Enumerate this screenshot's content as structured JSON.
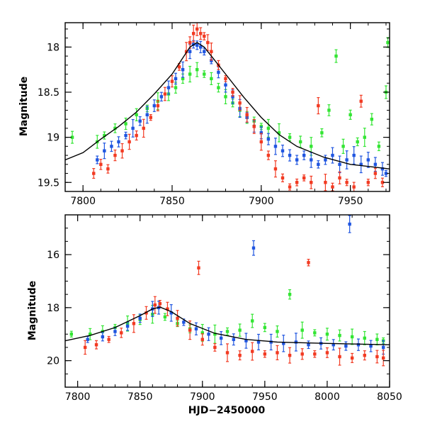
{
  "chart_data": [
    {
      "type": "scatter",
      "panel": "top",
      "xlabel": "",
      "ylabel": "Magnitude",
      "xlim": [
        7790,
        7972
      ],
      "ylim": [
        19.6,
        17.73
      ],
      "y_inverted": true,
      "xticks": [
        7800,
        7850,
        7900,
        7950
      ],
      "yticks": [
        18,
        18.5,
        19,
        19.5
      ],
      "ytick_labels": [
        "18",
        "18.5",
        "19",
        "19.5"
      ],
      "grid": false,
      "colors": {
        "green": "#33e533",
        "blue": "#1f55e0",
        "red": "#f23a22",
        "model": "#000000"
      },
      "series": [
        {
          "color": "green",
          "points": [
            [
              7794,
              19.0
            ],
            [
              7808,
              19.05
            ],
            [
              7812,
              18.98
            ],
            [
              7818,
              18.9
            ],
            [
              7824,
              18.85
            ],
            [
              7830,
              18.75
            ],
            [
              7836,
              18.68
            ],
            [
              7842,
              18.6
            ],
            [
              7848,
              18.52
            ],
            [
              7852,
              18.45
            ],
            [
              7856,
              18.35
            ],
            [
              7860,
              18.3
            ],
            [
              7864,
              18.25
            ],
            [
              7868,
              18.3
            ],
            [
              7872,
              18.35
            ],
            [
              7876,
              18.45
            ],
            [
              7880,
              18.55
            ],
            [
              7884,
              18.62
            ],
            [
              7888,
              18.7
            ],
            [
              7892,
              18.78
            ],
            [
              7896,
              18.82
            ],
            [
              7900,
              18.88
            ],
            [
              7904,
              18.9
            ],
            [
              7910,
              18.95
            ],
            [
              7916,
              19.0
            ],
            [
              7922,
              19.05
            ],
            [
              7928,
              19.1
            ],
            [
              7934,
              18.95
            ],
            [
              7938,
              18.7
            ],
            [
              7942,
              18.1
            ],
            [
              7946,
              19.1
            ],
            [
              7950,
              18.75
            ],
            [
              7954,
              19.05
            ],
            [
              7958,
              19.0
            ],
            [
              7962,
              18.8
            ],
            [
              7966,
              19.1
            ],
            [
              7970,
              18.5
            ],
            [
              7971,
              17.95
            ]
          ]
        },
        {
          "color": "blue",
          "points": [
            [
              7808,
              19.25
            ],
            [
              7812,
              19.15
            ],
            [
              7816,
              19.1
            ],
            [
              7820,
              19.05
            ],
            [
              7824,
              18.98
            ],
            [
              7828,
              18.9
            ],
            [
              7832,
              18.82
            ],
            [
              7836,
              18.75
            ],
            [
              7840,
              18.65
            ],
            [
              7844,
              18.55
            ],
            [
              7848,
              18.45
            ],
            [
              7852,
              18.35
            ],
            [
              7856,
              18.25
            ],
            [
              7860,
              18.05
            ],
            [
              7862,
              17.97
            ],
            [
              7864,
              17.98
            ],
            [
              7866,
              18.0
            ],
            [
              7868,
              18.05
            ],
            [
              7872,
              18.15
            ],
            [
              7876,
              18.28
            ],
            [
              7880,
              18.42
            ],
            [
              7884,
              18.55
            ],
            [
              7888,
              18.68
            ],
            [
              7892,
              18.78
            ],
            [
              7896,
              18.88
            ],
            [
              7900,
              18.95
            ],
            [
              7904,
              19.02
            ],
            [
              7908,
              19.1
            ],
            [
              7912,
              19.15
            ],
            [
              7916,
              19.2
            ],
            [
              7920,
              19.25
            ],
            [
              7924,
              19.2
            ],
            [
              7928,
              19.25
            ],
            [
              7932,
              19.3
            ],
            [
              7936,
              19.25
            ],
            [
              7940,
              19.2
            ],
            [
              7944,
              19.3
            ],
            [
              7948,
              19.25
            ],
            [
              7952,
              19.2
            ],
            [
              7956,
              19.3
            ],
            [
              7960,
              19.25
            ],
            [
              7964,
              19.3
            ],
            [
              7968,
              19.35
            ],
            [
              7970,
              19.4
            ]
          ]
        },
        {
          "color": "red",
          "points": [
            [
              7806,
              19.4
            ],
            [
              7810,
              19.3
            ],
            [
              7814,
              19.35
            ],
            [
              7818,
              19.2
            ],
            [
              7822,
              19.15
            ],
            [
              7826,
              19.05
            ],
            [
              7830,
              18.98
            ],
            [
              7834,
              18.9
            ],
            [
              7838,
              18.78
            ],
            [
              7842,
              18.65
            ],
            [
              7846,
              18.52
            ],
            [
              7850,
              18.38
            ],
            [
              7854,
              18.22
            ],
            [
              7858,
              18.05
            ],
            [
              7860,
              17.95
            ],
            [
              7862,
              17.85
            ],
            [
              7864,
              17.8
            ],
            [
              7866,
              17.85
            ],
            [
              7868,
              17.88
            ],
            [
              7870,
              17.95
            ],
            [
              7872,
              18.05
            ],
            [
              7876,
              18.2
            ],
            [
              7880,
              18.35
            ],
            [
              7884,
              18.5
            ],
            [
              7888,
              18.62
            ],
            [
              7892,
              18.75
            ],
            [
              7896,
              18.88
            ],
            [
              7900,
              19.05
            ],
            [
              7904,
              19.2
            ],
            [
              7908,
              19.35
            ],
            [
              7912,
              19.45
            ],
            [
              7916,
              19.55
            ],
            [
              7920,
              19.5
            ],
            [
              7924,
              19.45
            ],
            [
              7928,
              19.5
            ],
            [
              7932,
              18.65
            ],
            [
              7936,
              19.5
            ],
            [
              7940,
              19.55
            ],
            [
              7944,
              19.45
            ],
            [
              7948,
              19.5
            ],
            [
              7952,
              19.55
            ],
            [
              7956,
              18.6
            ],
            [
              7960,
              19.5
            ],
            [
              7964,
              19.4
            ],
            [
              7968,
              19.5
            ]
          ]
        },
        {
          "color": "model",
          "line": true,
          "points": [
            [
              7790,
              19.25
            ],
            [
              7800,
              19.17
            ],
            [
              7810,
              19.02
            ],
            [
              7820,
              18.88
            ],
            [
              7830,
              18.72
            ],
            [
              7840,
              18.52
            ],
            [
              7850,
              18.3
            ],
            [
              7856,
              18.12
            ],
            [
              7860,
              18.0
            ],
            [
              7864,
              17.95
            ],
            [
              7868,
              18.0
            ],
            [
              7872,
              18.1
            ],
            [
              7880,
              18.3
            ],
            [
              7890,
              18.55
            ],
            [
              7900,
              18.78
            ],
            [
              7910,
              18.97
            ],
            [
              7920,
              19.1
            ],
            [
              7935,
              19.22
            ],
            [
              7950,
              19.3
            ],
            [
              7972,
              19.35
            ]
          ]
        }
      ]
    },
    {
      "type": "scatter",
      "panel": "bottom",
      "xlabel": "HJD−2450000",
      "ylabel": "Magnitude",
      "xlim": [
        7790,
        8050
      ],
      "ylim": [
        21.0,
        14.5
      ],
      "y_inverted": true,
      "xticks": [
        7800,
        7850,
        7900,
        7950,
        8000,
        8050
      ],
      "yticks": [
        16,
        18,
        20
      ],
      "ytick_labels": [
        "16",
        "18",
        "20"
      ],
      "grid": false,
      "colors": {
        "green": "#33e533",
        "blue": "#1f55e0",
        "red": "#f23a22",
        "model": "#000000"
      },
      "series": [
        {
          "color": "green",
          "points": [
            [
              7795,
              19.0
            ],
            [
              7810,
              19.0
            ],
            [
              7820,
              18.9
            ],
            [
              7830,
              18.75
            ],
            [
              7840,
              18.6
            ],
            [
              7850,
              18.45
            ],
            [
              7860,
              18.25
            ],
            [
              7870,
              18.35
            ],
            [
              7880,
              18.6
            ],
            [
              7890,
              18.8
            ],
            [
              7900,
              18.95
            ],
            [
              7910,
              19.0
            ],
            [
              7920,
              18.9
            ],
            [
              7930,
              18.85
            ],
            [
              7940,
              18.5
            ],
            [
              7950,
              18.75
            ],
            [
              7960,
              18.9
            ],
            [
              7970,
              17.5
            ],
            [
              7980,
              18.85
            ],
            [
              7990,
              18.95
            ],
            [
              8000,
              19.0
            ],
            [
              8010,
              19.05
            ],
            [
              8020,
              19.1
            ],
            [
              8030,
              19.15
            ],
            [
              8040,
              19.2
            ],
            [
              8045,
              19.25
            ]
          ]
        },
        {
          "color": "blue",
          "points": [
            [
              7808,
              19.2
            ],
            [
              7820,
              19.1
            ],
            [
              7830,
              18.9
            ],
            [
              7840,
              18.7
            ],
            [
              7850,
              18.4
            ],
            [
              7860,
              18.05
            ],
            [
              7865,
              18.0
            ],
            [
              7875,
              18.2
            ],
            [
              7885,
              18.55
            ],
            [
              7895,
              18.8
            ],
            [
              7905,
              19.0
            ],
            [
              7915,
              19.15
            ],
            [
              7925,
              19.2
            ],
            [
              7935,
              19.25
            ],
            [
              7941,
              15.75
            ],
            [
              7945,
              19.3
            ],
            [
              7955,
              19.3
            ],
            [
              7965,
              19.35
            ],
            [
              7975,
              19.3
            ],
            [
              7985,
              19.4
            ],
            [
              7995,
              19.35
            ],
            [
              8005,
              19.4
            ],
            [
              8015,
              19.45
            ],
            [
              8018,
              14.85
            ],
            [
              8025,
              19.4
            ],
            [
              8035,
              19.45
            ],
            [
              8045,
              19.5
            ]
          ]
        },
        {
          "color": "red",
          "points": [
            [
              7806,
              19.5
            ],
            [
              7815,
              19.4
            ],
            [
              7825,
              19.2
            ],
            [
              7835,
              18.95
            ],
            [
              7845,
              18.6
            ],
            [
              7855,
              18.2
            ],
            [
              7862,
              17.9
            ],
            [
              7866,
              17.85
            ],
            [
              7872,
              18.05
            ],
            [
              7880,
              18.4
            ],
            [
              7890,
              18.85
            ],
            [
              7897,
              16.5
            ],
            [
              7900,
              19.2
            ],
            [
              7910,
              19.5
            ],
            [
              7920,
              19.7
            ],
            [
              7930,
              19.8
            ],
            [
              7940,
              19.65
            ],
            [
              7950,
              19.75
            ],
            [
              7960,
              19.7
            ],
            [
              7970,
              19.8
            ],
            [
              7980,
              19.75
            ],
            [
              7985,
              16.3
            ],
            [
              7990,
              19.75
            ],
            [
              8000,
              19.7
            ],
            [
              8010,
              19.85
            ],
            [
              8020,
              19.9
            ],
            [
              8030,
              19.8
            ],
            [
              8040,
              19.85
            ],
            [
              8045,
              19.9
            ]
          ]
        },
        {
          "color": "model",
          "line": true,
          "points": [
            [
              7790,
              19.25
            ],
            [
              7810,
              19.05
            ],
            [
              7830,
              18.75
            ],
            [
              7850,
              18.3
            ],
            [
              7860,
              18.05
            ],
            [
              7866,
              17.98
            ],
            [
              7875,
              18.15
            ],
            [
              7890,
              18.6
            ],
            [
              7910,
              18.97
            ],
            [
              7935,
              19.2
            ],
            [
              7960,
              19.3
            ],
            [
              8000,
              19.35
            ],
            [
              8050,
              19.4
            ]
          ]
        }
      ]
    }
  ]
}
